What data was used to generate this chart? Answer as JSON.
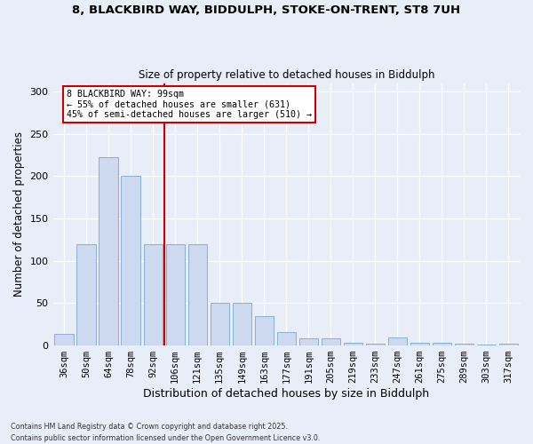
{
  "title_line1": "8, BLACKBIRD WAY, BIDDULPH, STOKE-ON-TRENT, ST8 7UH",
  "title_line2": "Size of property relative to detached houses in Biddulph",
  "xlabel": "Distribution of detached houses by size in Biddulph",
  "ylabel": "Number of detached properties",
  "categories": [
    "36sqm",
    "50sqm",
    "64sqm",
    "78sqm",
    "92sqm",
    "106sqm",
    "121sqm",
    "135sqm",
    "149sqm",
    "163sqm",
    "177sqm",
    "191sqm",
    "205sqm",
    "219sqm",
    "233sqm",
    "247sqm",
    "261sqm",
    "275sqm",
    "289sqm",
    "303sqm",
    "317sqm"
  ],
  "values": [
    14,
    120,
    222,
    200,
    120,
    120,
    120,
    50,
    50,
    35,
    16,
    8,
    8,
    3,
    2,
    10,
    3,
    3,
    2,
    1,
    2
  ],
  "bar_color": "#ccd9ee",
  "bar_edge_color": "#8aadd4",
  "vline_pos": 4.5,
  "vline_label": "8 BLACKBIRD WAY: 99sqm",
  "vline_pct_smaller": "55% of detached houses are smaller (631)",
  "vline_pct_larger": "45% of semi-detached houses are larger (510)",
  "vline_color": "#cc0000",
  "background_color": "#e8eef8",
  "grid_color": "#ffffff",
  "ylim": [
    0,
    310
  ],
  "yticks": [
    0,
    50,
    100,
    150,
    200,
    250,
    300
  ],
  "footer_line1": "Contains HM Land Registry data © Crown copyright and database right 2025.",
  "footer_line2": "Contains public sector information licensed under the Open Government Licence v3.0."
}
